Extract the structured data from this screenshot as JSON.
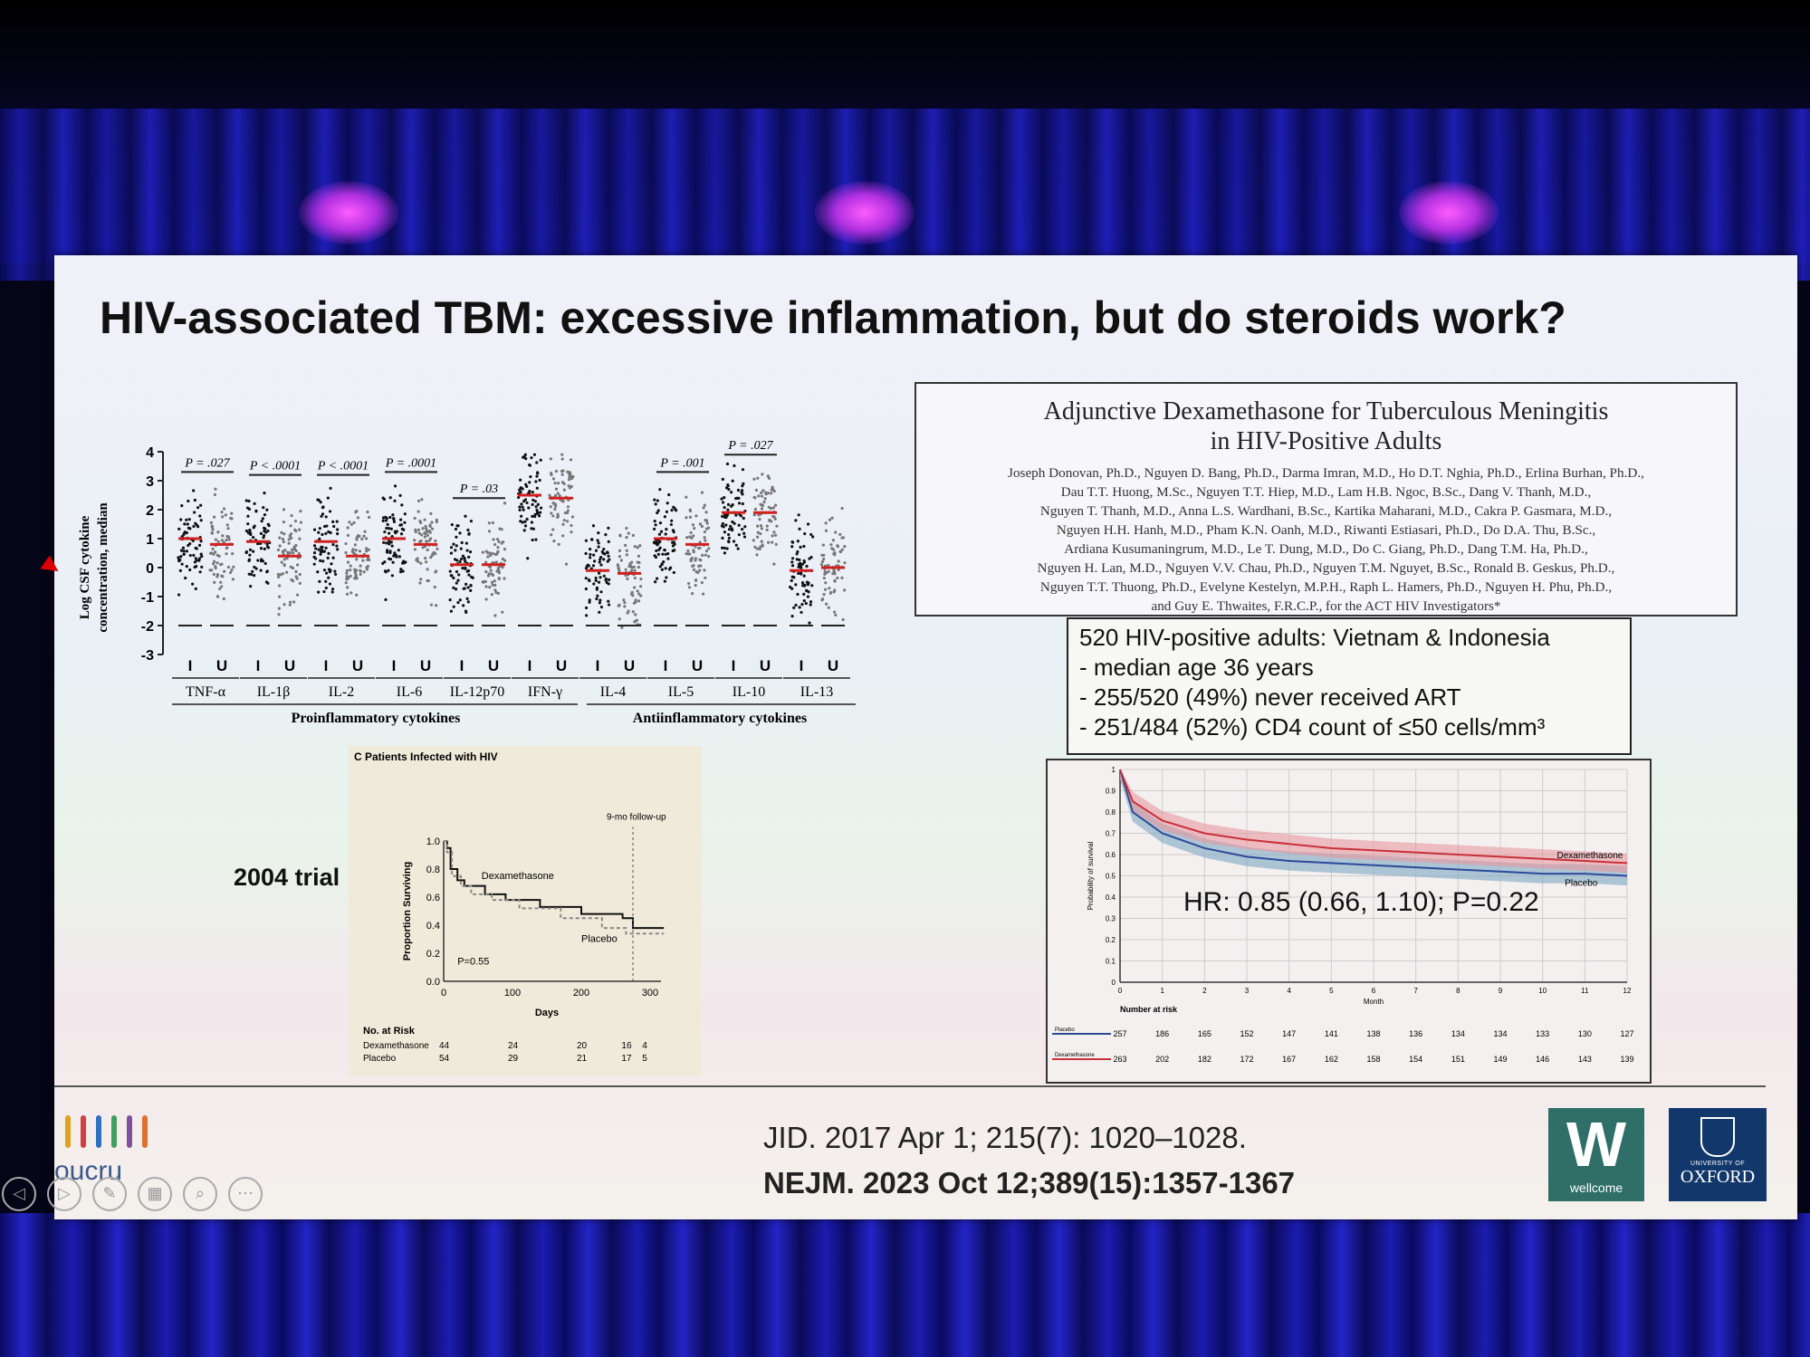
{
  "slide": {
    "title": "HIV-associated TBM: excessive inflammation, but do steroids work?"
  },
  "cytokine_chart": {
    "ylabel_line1": "Log CSF cytokine",
    "ylabel_line2": "concentration, median",
    "yticks": [
      "4",
      "3",
      "2",
      "1",
      "0",
      "-1",
      "-2",
      "-3"
    ],
    "groups": [
      {
        "label": "TNF-α",
        "p": "P = .027",
        "median_i": 1.0,
        "median_u": 0.8
      },
      {
        "label": "IL-1β",
        "p": "P < .0001",
        "median_i": 0.9,
        "median_u": 0.4
      },
      {
        "label": "IL-2",
        "p": "P < .0001",
        "median_i": 0.9,
        "median_u": 0.4
      },
      {
        "label": "IL-6",
        "p": "P = .0001",
        "median_i": 1.0,
        "median_u": 0.8
      },
      {
        "label": "IL-12p70",
        "p": "P = .03",
        "median_i": 0.1,
        "median_u": 0.1
      },
      {
        "label": "IFN-γ",
        "p": "",
        "median_i": 2.5,
        "median_u": 2.4
      },
      {
        "label": "IL-4",
        "p": "",
        "median_i": -0.1,
        "median_u": -0.2
      },
      {
        "label": "IL-5",
        "p": "P = .001",
        "median_i": 1.0,
        "median_u": 0.8
      },
      {
        "label": "IL-10",
        "p": "P = .027",
        "median_i": 1.9,
        "median_u": 1.9
      },
      {
        "label": "IL-13",
        "p": "",
        "median_i": -0.1,
        "median_u": 0.0
      }
    ],
    "sub_i": "I",
    "sub_u": "U",
    "group_label_pro": "Proinflammatory cytokines",
    "group_label_anti": "Antiinflammatory cytokines"
  },
  "paper": {
    "title_line1": "Adjunctive Dexamethasone for Tuberculous Meningitis",
    "title_line2": "in HIV-Positive Adults",
    "authors": [
      "Joseph Donovan, Ph.D., Nguyen D. Bang, Ph.D., Darma Imran, M.D., Ho D.T. Nghia, Ph.D., Erlina Burhan, Ph.D.,",
      "Dau T.T. Huong, M.Sc., Nguyen T.T. Hiep, M.D., Lam H.B. Ngoc, B.Sc., Dang V. Thanh, M.D.,",
      "Nguyen T. Thanh, M.D., Anna L.S. Wardhani, B.Sc., Kartika Maharani, M.D., Cakra P. Gasmara, M.D.,",
      "Nguyen H.H. Hanh, M.D., Pham K.N. Oanh, M.D., Riwanti Estiasari, Ph.D., Do D.A. Thu, B.Sc.,",
      "Ardiana Kusumaningrum, M.D., Le T. Dung, M.D., Do C. Giang, Ph.D., Dang T.M. Ha, Ph.D.,",
      "Nguyen H. Lan, M.D., Nguyen V.V. Chau, Ph.D., Nguyen T.M. Nguyet, B.Sc., Ronald B. Geskus, Ph.D.,",
      "Nguyen T.T. Thuong, Ph.D., Evelyne Kestelyn, M.P.H., Raph L. Hamers, Ph.D., Nguyen H. Phu, Ph.D.,",
      "and Guy E. Thwaites, F.R.C.P., for the ACT HIV Investigators*"
    ]
  },
  "facts": [
    "520 HIV-positive adults: Vietnam & Indonesia",
    " - median age 36 years",
    "- 255/520 (49%) never received ART",
    "- 251/484 (52%) CD4 count of ≤50 cells/mm³"
  ],
  "trial_label": "2004 trial",
  "km2004": {
    "panel": "C  Patients Infected with HIV",
    "ylabel": "Proportion Surviving",
    "xlabel": "Days",
    "yticks": [
      "1.0",
      "0.8",
      "0.6",
      "0.4",
      "0.2",
      "0.0"
    ],
    "xticks": [
      "0",
      "100",
      "200",
      "300"
    ],
    "followup": "9-mo follow-up",
    "dexa_label": "Dexamethasone",
    "placebo_label": "Placebo",
    "pvalue": "P=0.55",
    "risk_header": "No. at Risk",
    "risk_rows": [
      {
        "name": "Dexamethasone",
        "values": [
          "44",
          "24",
          "20",
          "16",
          "4"
        ]
      },
      {
        "name": "Placebo",
        "values": [
          "54",
          "29",
          "21",
          "17",
          "5"
        ]
      }
    ]
  },
  "km2023": {
    "ylabel": "Probability of survival",
    "xlabel": "Month",
    "xticks": [
      "0",
      "1",
      "2",
      "3",
      "4",
      "5",
      "6",
      "7",
      "8",
      "9",
      "10",
      "11",
      "12"
    ],
    "yticks": [
      "1",
      "0.9",
      "0.8",
      "0.7",
      "0.6",
      "0.5",
      "0.4",
      "0.3",
      "0.2",
      "0.1",
      "0"
    ],
    "dexa_label": "Dexamethasone",
    "placebo_label": "Placebo",
    "hr": "HR: 0.85 (0.66, 1.10); P=0.22",
    "risk_header": "Number at risk",
    "risk_rows": [
      {
        "name": "Placebo",
        "values": [
          "257",
          "186",
          "165",
          "152",
          "147",
          "141",
          "138",
          "136",
          "134",
          "134",
          "133",
          "130",
          "127"
        ]
      },
      {
        "name": "Dexamethasone",
        "values": [
          "263",
          "202",
          "182",
          "172",
          "167",
          "162",
          "158",
          "154",
          "151",
          "149",
          "146",
          "143",
          "139"
        ]
      }
    ]
  },
  "references": {
    "r1": "JID. 2017 Apr 1; 215(7): 1020–1028.",
    "r2": "NEJM. 2023 Oct 12;389(15):1357-1367"
  },
  "logos": {
    "oucru": "oucru",
    "wellcome_letter": "W",
    "wellcome": "wellcome",
    "oxford_small": "UNIVERSITY OF",
    "oxford": "OXFORD"
  },
  "colors": {
    "dexa": "#c8303a",
    "placebo": "#2c4a9a",
    "dexa_band": "#e69aa0",
    "placebo_band": "#8fb0c8",
    "bars": [
      "#e0a020",
      "#d04040",
      "#3070c0",
      "#40a060",
      "#8050a0",
      "#e07030"
    ]
  }
}
